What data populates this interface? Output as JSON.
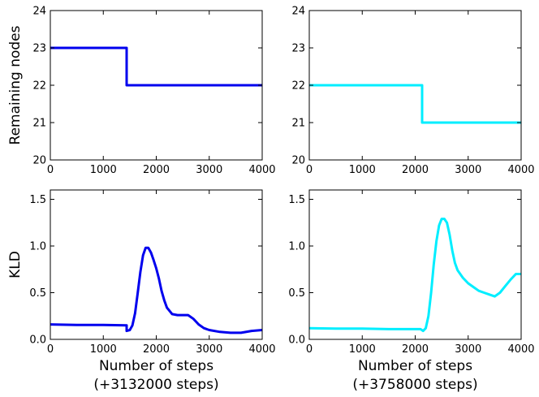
{
  "chart_data": [
    {
      "type": "line",
      "panel": "top-left",
      "ylabel": "Remaining nodes",
      "xlabel": "",
      "xlim": [
        0,
        4000
      ],
      "ylim": [
        20,
        24
      ],
      "xticks": [
        "0",
        "1000",
        "2000",
        "3000",
        "4000"
      ],
      "yticks": [
        "20",
        "21",
        "22",
        "23",
        "24"
      ],
      "grid": false,
      "series": [
        {
          "color": "#0000ee",
          "x": [
            0,
            1440,
            1440,
            4000
          ],
          "y": [
            23,
            23,
            22,
            22
          ]
        }
      ]
    },
    {
      "type": "line",
      "panel": "top-right",
      "ylabel": "",
      "xlabel": "",
      "xlim": [
        0,
        4000
      ],
      "ylim": [
        20,
        24
      ],
      "xticks": [
        "0",
        "1000",
        "2000",
        "3000",
        "4000"
      ],
      "yticks": [
        "20",
        "21",
        "22",
        "23",
        "24"
      ],
      "grid": false,
      "series": [
        {
          "color": "#00eeff",
          "x": [
            0,
            2130,
            2130,
            4000
          ],
          "y": [
            22,
            22,
            21,
            21
          ]
        }
      ]
    },
    {
      "type": "line",
      "panel": "bottom-left",
      "ylabel": "KLD",
      "xlabel": [
        "Number of steps",
        "(+3132000 steps)"
      ],
      "xlim": [
        0,
        4000
      ],
      "ylim": [
        0,
        1.6
      ],
      "xticks": [
        "0",
        "1000",
        "2000",
        "3000",
        "4000"
      ],
      "yticks": [
        "0.0",
        "0.5",
        "1.0",
        "1.5"
      ],
      "grid": false,
      "series": [
        {
          "color": "#0000ee",
          "x": [
            0,
            500,
            1000,
            1440,
            1440,
            1500,
            1550,
            1600,
            1650,
            1700,
            1750,
            1800,
            1850,
            1900,
            1950,
            2000,
            2050,
            2100,
            2150,
            2200,
            2300,
            2400,
            2500,
            2600,
            2700,
            2800,
            2900,
            3000,
            3200,
            3400,
            3600,
            3800,
            4000
          ],
          "y": [
            0.16,
            0.155,
            0.155,
            0.15,
            0.09,
            0.1,
            0.15,
            0.28,
            0.5,
            0.72,
            0.9,
            0.98,
            0.98,
            0.93,
            0.85,
            0.76,
            0.65,
            0.52,
            0.42,
            0.34,
            0.27,
            0.26,
            0.26,
            0.26,
            0.22,
            0.16,
            0.12,
            0.1,
            0.08,
            0.07,
            0.07,
            0.09,
            0.1
          ]
        }
      ]
    },
    {
      "type": "line",
      "panel": "bottom-right",
      "ylabel": "",
      "xlabel": [
        "Number of steps",
        "(+3758000 steps)"
      ],
      "xlim": [
        0,
        4000
      ],
      "ylim": [
        0,
        1.6
      ],
      "xticks": [
        "0",
        "1000",
        "2000",
        "3000",
        "4000"
      ],
      "yticks": [
        "0.0",
        "0.5",
        "1.0",
        "1.5"
      ],
      "grid": false,
      "series": [
        {
          "color": "#00eeff",
          "x": [
            0,
            500,
            1000,
            1500,
            2100,
            2150,
            2200,
            2250,
            2300,
            2350,
            2400,
            2450,
            2500,
            2550,
            2600,
            2650,
            2700,
            2750,
            2800,
            2900,
            3000,
            3100,
            3200,
            3300,
            3400,
            3500,
            3600,
            3700,
            3800,
            3900,
            4000
          ],
          "y": [
            0.12,
            0.115,
            0.115,
            0.11,
            0.11,
            0.09,
            0.12,
            0.25,
            0.5,
            0.8,
            1.05,
            1.22,
            1.29,
            1.29,
            1.25,
            1.12,
            0.95,
            0.82,
            0.74,
            0.66,
            0.6,
            0.56,
            0.52,
            0.5,
            0.48,
            0.46,
            0.5,
            0.57,
            0.64,
            0.7,
            0.7
          ]
        }
      ]
    }
  ]
}
